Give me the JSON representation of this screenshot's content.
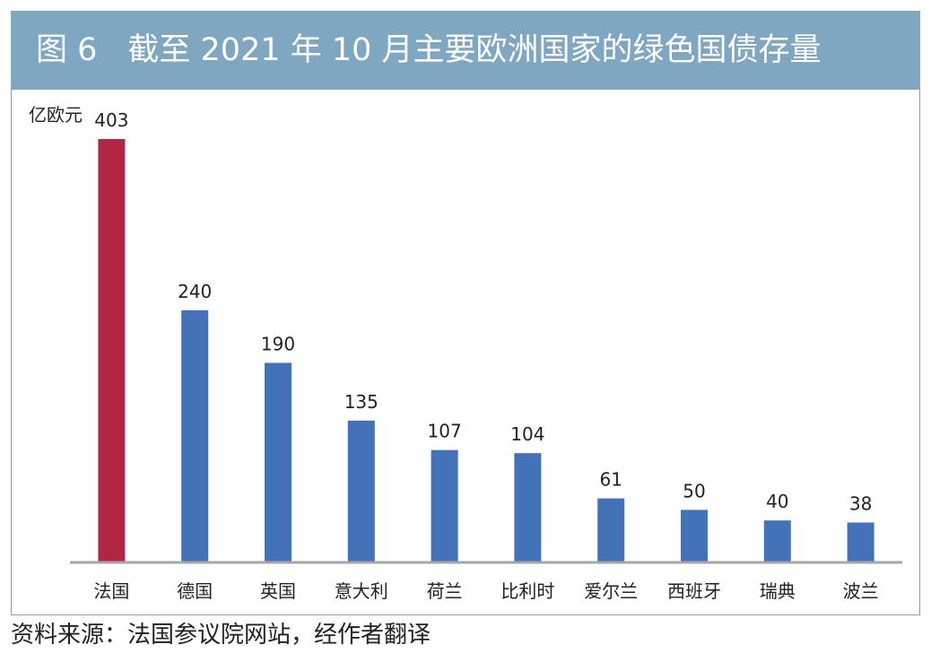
{
  "header": {
    "figure_label": "图 6",
    "title": "截至 2021 年 10 月主要欧洲国家的绿色国债存量"
  },
  "chart_data": {
    "type": "bar",
    "title": "截至 2021 年 10 月主要欧洲国家的绿色国债存量",
    "ylabel": "亿欧元",
    "xlabel": "",
    "categories": [
      "法国",
      "德国",
      "英国",
      "意大利",
      "荷兰",
      "比利时",
      "爱尔兰",
      "西班牙",
      "瑞典",
      "波兰"
    ],
    "values": [
      403,
      240,
      190,
      135,
      107,
      104,
      61,
      50,
      40,
      38
    ],
    "ylim": [
      0,
      403
    ],
    "grid": false,
    "highlight_index": 0,
    "colors": {
      "highlight": "#b22544",
      "default": "#4472b8"
    }
  },
  "footer": {
    "source": "资料来源：法国参议院网站，经作者翻译"
  }
}
